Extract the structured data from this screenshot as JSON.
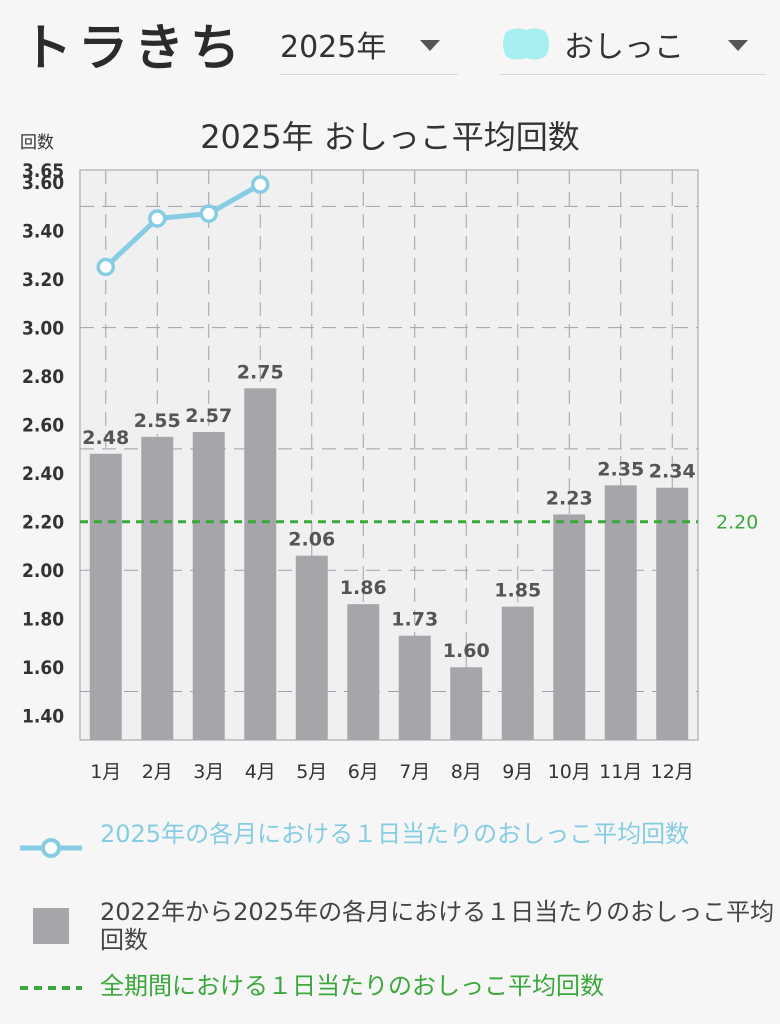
{
  "app": {
    "title": "トラきち"
  },
  "filters": {
    "year": "2025年",
    "category": "おしっこ",
    "category_icon_color": "#a6eef0"
  },
  "chart_data": {
    "type": "bar",
    "title": "2025年 おしっこ平均回数",
    "ylabel": "回数",
    "ylim": [
      1.3,
      3.65
    ],
    "yticks": [
      1.4,
      1.6,
      1.8,
      2.0,
      2.2,
      2.4,
      2.6,
      2.8,
      3.0,
      3.2,
      3.4,
      3.6,
      3.65
    ],
    "categories": [
      "1月",
      "2月",
      "3月",
      "4月",
      "5月",
      "6月",
      "7月",
      "8月",
      "9月",
      "10月",
      "11月",
      "12月"
    ],
    "series": [
      {
        "name": "2022年から2025年の各月における１日当たりのおしっこ平均回数",
        "kind": "bar",
        "color": "#a7a5aa",
        "values": [
          2.48,
          2.55,
          2.57,
          2.75,
          2.06,
          1.86,
          1.73,
          1.6,
          1.85,
          2.23,
          2.35,
          2.34
        ],
        "labels": [
          "2.48",
          "2.55",
          "2.57",
          "2.75",
          "2.06",
          "1.86",
          "1.73",
          "1.60",
          "1.85",
          "2.23",
          "2.35",
          "2.34"
        ]
      },
      {
        "name": "2025年の各月における１日当たりのおしっこ平均回数",
        "kind": "line",
        "color": "#86cde4",
        "values": [
          3.25,
          3.45,
          3.47,
          3.59,
          null,
          null,
          null,
          null,
          null,
          null,
          null,
          null
        ]
      },
      {
        "name": "全期間における１日当たりのおしっこ平均回数",
        "kind": "reference-line",
        "color": "#3aa83a",
        "value": 2.2,
        "label": "2.20"
      }
    ],
    "grid": true,
    "legend_position": "bottom"
  }
}
